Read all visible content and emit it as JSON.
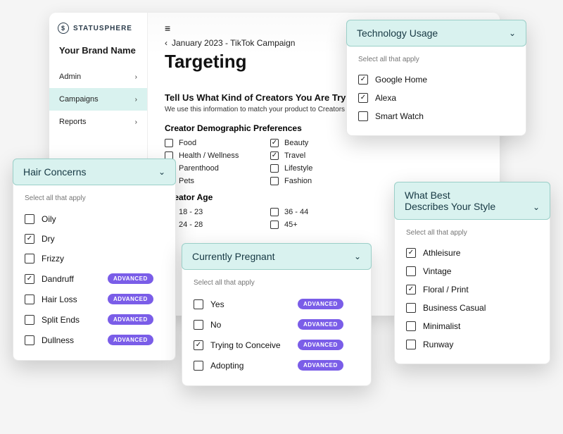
{
  "app": {
    "logo_text": "STATUSPHERE",
    "brand_name": "Your Brand Name",
    "nav": [
      {
        "label": "Admin",
        "active": false
      },
      {
        "label": "Campaigns",
        "active": true
      },
      {
        "label": "Reports",
        "active": false
      }
    ],
    "breadcrumb": "January 2023 - TikTok Campaign",
    "page_title": "Targeting",
    "section_title": "Tell Us What Kind of Creators You Are Tryi",
    "section_sub": "We use this information to match your product to Creators for th",
    "demo_head": "Creator Demographic Preferences",
    "age_head": "Creator Age",
    "demo_options": [
      {
        "label": "Food",
        "checked": false
      },
      {
        "label": "Beauty",
        "checked": true
      },
      {
        "label": "Health / Wellness",
        "checked": false
      },
      {
        "label": "Travel",
        "checked": true
      },
      {
        "label": "Parenthood",
        "checked": false
      },
      {
        "label": "Lifestyle",
        "checked": false
      },
      {
        "label": "Pets",
        "checked": false
      },
      {
        "label": "Fashion",
        "checked": false
      }
    ],
    "age_options": [
      {
        "label": "18 - 23",
        "checked": false
      },
      {
        "label": "36 - 44",
        "checked": false
      },
      {
        "label": "24 - 28",
        "checked": false
      },
      {
        "label": "45+",
        "checked": false
      }
    ]
  },
  "panels": {
    "hair": {
      "title": "Hair Concerns",
      "apply": "Select all that apply",
      "options": [
        {
          "label": "Oily",
          "checked": false,
          "badge": null
        },
        {
          "label": "Dry",
          "checked": true,
          "badge": null
        },
        {
          "label": "Frizzy",
          "checked": false,
          "badge": null
        },
        {
          "label": "Dandruff",
          "checked": true,
          "badge": "ADVANCED"
        },
        {
          "label": "Hair Loss",
          "checked": false,
          "badge": "ADVANCED"
        },
        {
          "label": "Split Ends",
          "checked": false,
          "badge": "ADVANCED"
        },
        {
          "label": "Dullness",
          "checked": false,
          "badge": "ADVANCED"
        }
      ]
    },
    "tech": {
      "title": "Technology Usage",
      "apply": "Select all that apply",
      "options": [
        {
          "label": "Google Home",
          "checked": true
        },
        {
          "label": "Alexa",
          "checked": true
        },
        {
          "label": "Smart Watch",
          "checked": false
        }
      ]
    },
    "style": {
      "title_line1": "What Best",
      "title_line2": "Describes Your Style",
      "apply": "Select all that apply",
      "options": [
        {
          "label": "Athleisure",
          "checked": true
        },
        {
          "label": "Vintage",
          "checked": false
        },
        {
          "label": "Floral / Print",
          "checked": true
        },
        {
          "label": "Business Casual",
          "checked": false
        },
        {
          "label": "Minimalist",
          "checked": false
        },
        {
          "label": "Runway",
          "checked": false
        }
      ]
    },
    "preg": {
      "title": "Currently Pregnant",
      "apply": "Select all that apply",
      "options": [
        {
          "label": "Yes",
          "checked": false,
          "badge": "ADVANCED"
        },
        {
          "label": "No",
          "checked": false,
          "badge": "ADVANCED"
        },
        {
          "label": "Trying to Conceive",
          "checked": true,
          "badge": "ADVANCED"
        },
        {
          "label": "Adopting",
          "checked": false,
          "badge": "ADVANCED"
        }
      ]
    }
  },
  "colors": {
    "panel_head_bg": "#d9f2ef",
    "panel_head_border": "#9bcfc8",
    "badge_bg": "#7a5de8"
  }
}
